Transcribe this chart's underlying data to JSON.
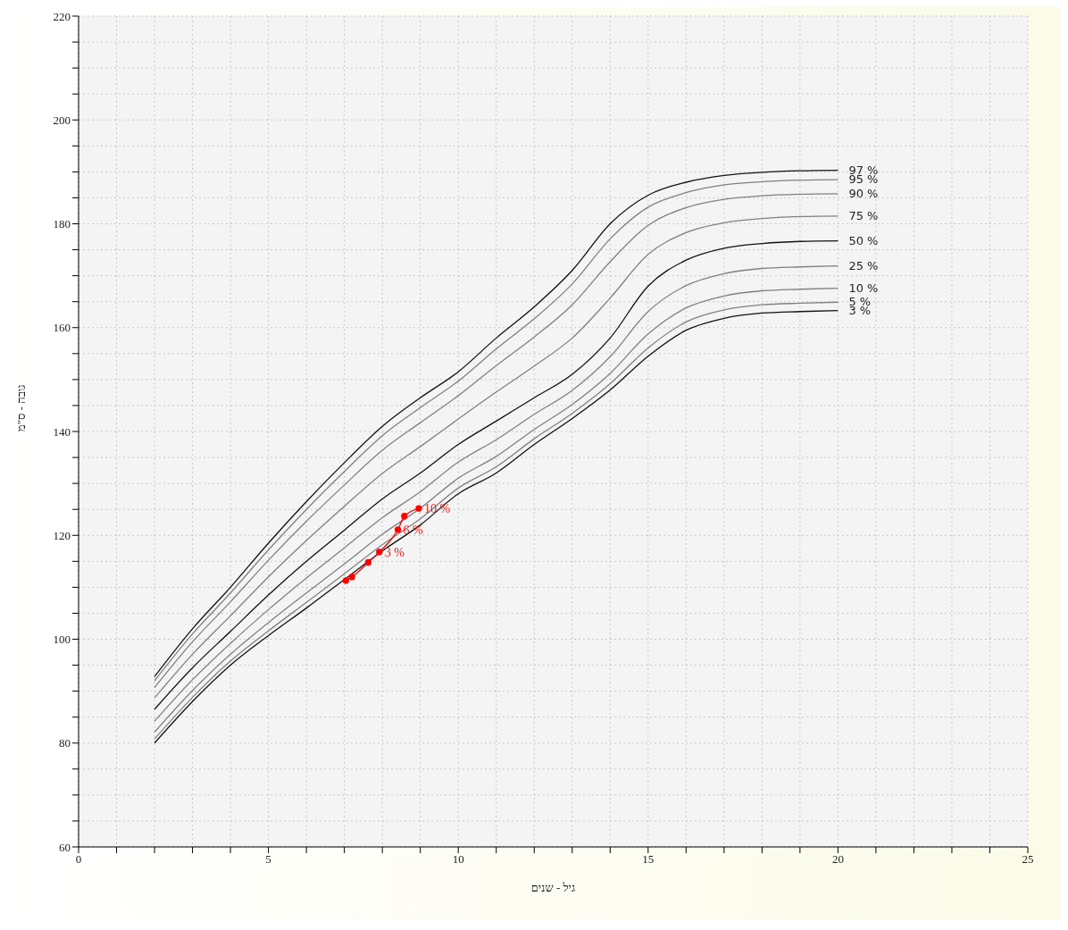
{
  "chart_data": {
    "type": "line",
    "xlabel": "גיל - שנים",
    "ylabel": "גובה - ס\"מ",
    "xlim": [
      0,
      25
    ],
    "xticks": [
      0,
      {
        "value": 1,
        "label": null
      },
      {
        "value": 2,
        "label": null
      },
      {
        "value": 3,
        "label": null
      },
      {
        "value": 4,
        "label": null
      },
      5,
      {
        "value": 6,
        "label": null
      },
      {
        "value": 7,
        "label": null
      },
      {
        "value": 8,
        "label": null
      },
      {
        "value": 9,
        "label": null
      },
      10,
      {
        "value": 11,
        "label": null
      },
      {
        "value": 12,
        "label": null
      },
      {
        "value": 13,
        "label": null
      },
      {
        "value": 14,
        "label": null
      },
      15,
      {
        "value": 16,
        "label": null
      },
      {
        "value": 17,
        "label": null
      },
      {
        "value": 18,
        "label": null
      },
      {
        "value": 19,
        "label": null
      },
      20,
      {
        "value": 21,
        "label": null
      },
      {
        "value": 22,
        "label": null
      },
      {
        "value": 23,
        "label": null
      },
      {
        "value": 24,
        "label": null
      },
      25
    ],
    "ylim": [
      60,
      220
    ],
    "yticks": [
      60,
      {
        "value": 65,
        "label": null
      },
      {
        "value": 70,
        "label": null
      },
      {
        "value": 75,
        "label": null
      },
      80,
      {
        "value": 85,
        "label": null
      },
      {
        "value": 90,
        "label": null
      },
      {
        "value": 95,
        "label": null
      },
      100,
      {
        "value": 105,
        "label": null
      },
      {
        "value": 110,
        "label": null
      },
      {
        "value": 115,
        "label": null
      },
      120,
      {
        "value": 125,
        "label": null
      },
      {
        "value": 130,
        "label": null
      },
      {
        "value": 135,
        "label": null
      },
      140,
      {
        "value": 145,
        "label": null
      },
      {
        "value": 150,
        "label": null
      },
      {
        "value": 155,
        "label": null
      },
      160,
      {
        "value": 165,
        "label": null
      },
      {
        "value": 170,
        "label": null
      },
      {
        "value": 175,
        "label": null
      },
      180,
      {
        "value": 185,
        "label": null
      },
      {
        "value": 190,
        "label": null
      },
      {
        "value": 195,
        "label": null
      },
      200,
      {
        "value": 205,
        "label": null
      },
      {
        "value": 210,
        "label": null
      },
      {
        "value": 215,
        "label": null
      },
      220
    ],
    "grid": true,
    "x": [
      2,
      3,
      4,
      5,
      6,
      7,
      8,
      9,
      10,
      11,
      12,
      13,
      14,
      15,
      16,
      17,
      18,
      19,
      20
    ],
    "series": [
      {
        "name": "97 %",
        "color": "#111111",
        "marker": "none",
        "values": [
          92.8,
          102,
          110,
          118.5,
          126.5,
          134,
          141,
          146.5,
          151.5,
          158,
          164,
          171,
          180,
          185.5,
          188,
          189.3,
          189.9,
          190.2,
          190.3
        ]
      },
      {
        "name": "95 %",
        "color": "#808080",
        "marker": "none",
        "values": [
          92.0,
          101.0,
          108.9,
          117.2,
          125.0,
          132.3,
          139.2,
          144.6,
          149.7,
          155.9,
          161.7,
          168.4,
          177.1,
          183.2,
          186.0,
          187.5,
          188.1,
          188.4,
          188.5
        ]
      },
      {
        "name": "90 %",
        "color": "#808080",
        "marker": "none",
        "values": [
          90.7,
          99.5,
          107.2,
          115.2,
          122.7,
          129.7,
          136.4,
          141.7,
          146.9,
          152.7,
          158.2,
          164.4,
          172.7,
          179.7,
          183.1,
          184.7,
          185.4,
          185.7,
          185.8
        ]
      },
      {
        "name": "75 %",
        "color": "#808080",
        "marker": "none",
        "values": [
          88.7,
          97.1,
          104.5,
          112.0,
          119.0,
          125.6,
          131.9,
          137.1,
          142.4,
          147.6,
          152.6,
          158.0,
          165.7,
          174.1,
          178.3,
          180.2,
          181.0,
          181.4,
          181.5
        ]
      },
      {
        "name": "50 %",
        "color": "#111111",
        "marker": "none",
        "values": [
          86.5,
          94.5,
          101.5,
          108.5,
          115,
          121,
          127,
          132,
          137.5,
          142,
          146.5,
          151,
          158,
          168,
          173,
          175.3,
          176.2,
          176.6,
          176.7
        ]
      },
      {
        "name": "25 %",
        "color": "#808080",
        "marker": "none",
        "values": [
          84.2,
          92.2,
          99.2,
          105.7,
          111.8,
          117.6,
          123.4,
          128.4,
          134.1,
          138.4,
          143.3,
          147.9,
          154.4,
          163.1,
          168.1,
          170.4,
          171.4,
          171.7,
          171.9
        ]
      },
      {
        "name": "10 %",
        "color": "#808080",
        "marker": "none",
        "values": [
          82.1,
          90.1,
          97.1,
          103.2,
          108.9,
          114.5,
          120.2,
          125.2,
          131.0,
          135.2,
          140.4,
          145.2,
          151.2,
          158.8,
          163.8,
          166.1,
          167.1,
          167.4,
          167.6
        ]
      },
      {
        "name": "5 %",
        "color": "#808080",
        "marker": "none",
        "values": [
          80.8,
          88.8,
          95.8,
          101.6,
          107.1,
          112.6,
          118.2,
          123.2,
          129.1,
          133.2,
          138.6,
          143.5,
          149.2,
          156.1,
          161.1,
          163.4,
          164.4,
          164.7,
          164.9
        ]
      },
      {
        "name": "3 %",
        "color": "#111111",
        "marker": "none",
        "values": [
          80,
          88,
          95,
          100.7,
          106,
          111.5,
          117,
          122,
          128,
          132,
          137.5,
          142.5,
          148,
          154.5,
          159.5,
          161.8,
          162.8,
          163.1,
          163.3
        ]
      },
      {
        "color": "#ff0000",
        "marker": "circle",
        "x": [
          7.04,
          7.2,
          7.63,
          7.92,
          8.41,
          8.58,
          8.96
        ],
        "values": [
          111.3,
          112,
          114.8,
          116.8,
          121.1,
          123.7,
          125.2
        ]
      }
    ],
    "annotations": [
      {
        "text": "3 %",
        "x": 7.92,
        "y": 116.8
      },
      {
        "text": "6 %",
        "x": 8.41,
        "y": 121.1
      },
      {
        "text": "10 %",
        "x": 8.96,
        "y": 125.2
      }
    ]
  }
}
